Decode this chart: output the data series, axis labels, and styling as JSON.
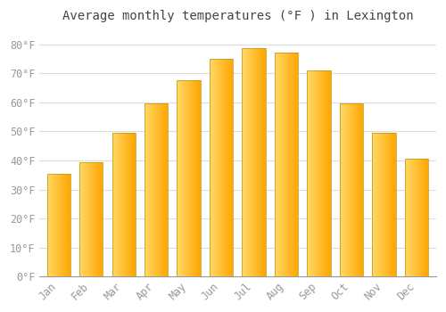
{
  "title": "Average monthly temperatures (°F ) in Lexington",
  "months": [
    "Jan",
    "Feb",
    "Mar",
    "Apr",
    "May",
    "Jun",
    "Jul",
    "Aug",
    "Sep",
    "Oct",
    "Nov",
    "Dec"
  ],
  "values": [
    35.5,
    39.5,
    49.5,
    59.5,
    67.5,
    75.0,
    78.5,
    77.0,
    71.0,
    59.5,
    49.5,
    40.5
  ],
  "bar_color_left": "#FFD966",
  "bar_color_right": "#FFA500",
  "bar_edge_color": "#c8a000",
  "background_color": "#ffffff",
  "plot_bg_color": "#ffffff",
  "grid_color": "#dddddd",
  "text_color": "#999999",
  "title_color": "#444444",
  "ylim": [
    0,
    85
  ],
  "yticks": [
    0,
    10,
    20,
    30,
    40,
    50,
    60,
    70,
    80
  ],
  "ytick_labels": [
    "0°F",
    "10°F",
    "20°F",
    "30°F",
    "40°F",
    "50°F",
    "60°F",
    "70°F",
    "80°F"
  ],
  "title_fontsize": 10,
  "tick_fontsize": 8.5,
  "bar_width": 0.72
}
